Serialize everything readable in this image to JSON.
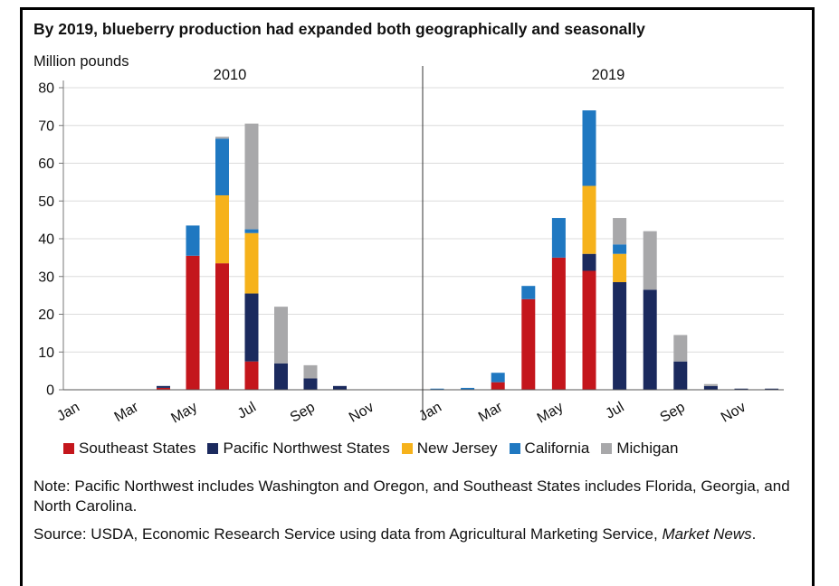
{
  "title": "By 2019, blueberry production had expanded both geographically and seasonally",
  "legend": [
    {
      "name": "Southeast States",
      "color": "#c4161c"
    },
    {
      "name": "Pacific Northwest States",
      "color": "#1b2a5e"
    },
    {
      "name": "New Jersey",
      "color": "#f6b21b"
    },
    {
      "name": "California",
      "color": "#1f78c1"
    },
    {
      "name": "Michigan",
      "color": "#a8a8aa"
    }
  ],
  "note": "Note: Pacific Northwest includes Washington and Oregon, and Southeast States includes Florida, Georgia, and North Carolina.",
  "source_prefix": "Source: USDA, Economic Research Service using data from Agricultural Marketing Service,",
  "source_italic": "Market News",
  "source_suffix": ".",
  "chart_data": {
    "type": "bar",
    "stacked": true,
    "ylabel": "Million pounds",
    "ylim": [
      0,
      80
    ],
    "yticks": [
      0,
      10,
      20,
      30,
      40,
      50,
      60,
      70,
      80
    ],
    "grid": true,
    "categories": [
      "Jan",
      "Feb",
      "Mar",
      "Apr",
      "May",
      "Jun",
      "Jul",
      "Aug",
      "Sep",
      "Oct",
      "Nov",
      "Dec"
    ],
    "tick_labels": [
      "Jan",
      "Mar",
      "May",
      "Jul",
      "Sep",
      "Nov"
    ],
    "panels": [
      {
        "title": "2010",
        "series": [
          {
            "name": "Southeast States",
            "values": [
              0,
              0,
              0,
              0.5,
              35.5,
              33.5,
              7.5,
              0,
              0,
              0,
              0,
              0
            ]
          },
          {
            "name": "Pacific Northwest States",
            "values": [
              0,
              0,
              0,
              0.5,
              0,
              0,
              18,
              7,
              3,
              1,
              0,
              0
            ]
          },
          {
            "name": "New Jersey",
            "values": [
              0,
              0,
              0,
              0,
              0,
              18,
              16,
              0,
              0,
              0,
              0,
              0
            ]
          },
          {
            "name": "California",
            "values": [
              0,
              0,
              0,
              0,
              8,
              15,
              1,
              0,
              0,
              0,
              0,
              0
            ]
          },
          {
            "name": "Michigan",
            "values": [
              0,
              0,
              0,
              0,
              0,
              0.5,
              28,
              15,
              3.5,
              0,
              0,
              0
            ]
          }
        ]
      },
      {
        "title": "2019",
        "series": [
          {
            "name": "Southeast States",
            "values": [
              0,
              0,
              2,
              24,
              35,
              31.5,
              0,
              0,
              0,
              0,
              0,
              0
            ]
          },
          {
            "name": "Pacific Northwest States",
            "values": [
              0,
              0,
              0,
              0,
              0,
              4.5,
              28.5,
              26.5,
              7.5,
              1,
              0.3,
              0.3
            ]
          },
          {
            "name": "New Jersey",
            "values": [
              0,
              0,
              0,
              0,
              0,
              18,
              7.5,
              0,
              0,
              0,
              0,
              0
            ]
          },
          {
            "name": "California",
            "values": [
              0.3,
              0.5,
              2.5,
              3.5,
              10.5,
              20,
              2.5,
              0,
              0,
              0,
              0,
              0
            ]
          },
          {
            "name": "Michigan",
            "values": [
              0,
              0,
              0,
              0,
              0,
              0,
              7,
              15.5,
              7,
              0.5,
              0,
              0
            ]
          }
        ]
      }
    ]
  }
}
